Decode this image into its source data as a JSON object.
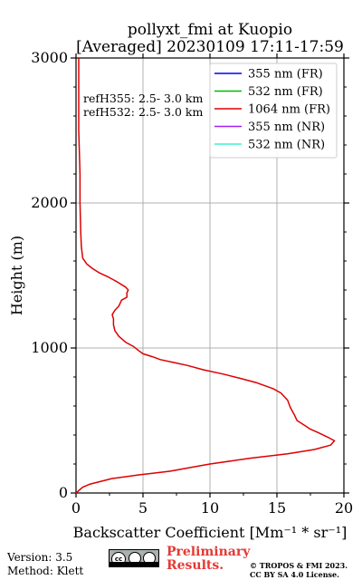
{
  "chart_data": {
    "type": "line",
    "title": "pollyxt_fmi at Kuopio",
    "subtitle": "[Averaged] 20230109 17:11-17:59",
    "xlabel": "Backscatter Coefficient [Mm⁻¹ * sr⁻¹]",
    "ylabel": "Height (m)",
    "xlim": [
      0,
      20
    ],
    "ylim": [
      0,
      3000
    ],
    "xticks": [
      "0",
      "5",
      "10",
      "15",
      "20"
    ],
    "yticks": [
      "0",
      "1000",
      "2000",
      "3000"
    ],
    "grid": true,
    "legend_position": "top-right",
    "ref_notes": [
      "refH355:  2.5- 3.0 km",
      "refH532:  2.5- 3.0 km"
    ],
    "legend": [
      {
        "name": "355 nm (FR)",
        "color": "#0000ee"
      },
      {
        "name": "532 nm (FR)",
        "color": "#00bb00"
      },
      {
        "name": "1064 nm (FR)",
        "color": "#dd0000"
      },
      {
        "name": "355 nm (NR)",
        "color": "#a020f0"
      },
      {
        "name": "532 nm (NR)",
        "color": "#40f0d0"
      }
    ],
    "series": [
      {
        "name": "1064 nm (FR)",
        "color": "#dd0000",
        "points": [
          [
            0.0,
            0
          ],
          [
            0.5,
            40
          ],
          [
            1.0,
            60
          ],
          [
            2.7,
            100
          ],
          [
            4.7,
            125
          ],
          [
            7.0,
            150
          ],
          [
            10.0,
            200
          ],
          [
            13.0,
            240
          ],
          [
            15.8,
            270
          ],
          [
            17.8,
            300
          ],
          [
            19.0,
            330
          ],
          [
            19.3,
            360
          ],
          [
            18.8,
            385
          ],
          [
            18.0,
            420
          ],
          [
            17.5,
            440
          ],
          [
            17.0,
            470
          ],
          [
            16.5,
            500
          ],
          [
            16.3,
            540
          ],
          [
            16.0,
            590
          ],
          [
            15.8,
            640
          ],
          [
            15.3,
            690
          ],
          [
            14.7,
            720
          ],
          [
            13.5,
            760
          ],
          [
            12.3,
            790
          ],
          [
            11.0,
            820
          ],
          [
            9.5,
            850
          ],
          [
            8.3,
            880
          ],
          [
            7.3,
            900
          ],
          [
            6.3,
            920
          ],
          [
            5.7,
            940
          ],
          [
            5.0,
            960
          ],
          [
            4.7,
            980
          ],
          [
            4.3,
            1010
          ],
          [
            3.7,
            1040
          ],
          [
            3.2,
            1080
          ],
          [
            2.9,
            1120
          ],
          [
            2.8,
            1160
          ],
          [
            2.8,
            1200
          ],
          [
            2.7,
            1230
          ],
          [
            2.9,
            1260
          ],
          [
            3.2,
            1290
          ],
          [
            3.4,
            1330
          ],
          [
            3.8,
            1350
          ],
          [
            3.8,
            1380
          ],
          [
            3.9,
            1400
          ],
          [
            3.7,
            1420
          ],
          [
            3.0,
            1460
          ],
          [
            2.4,
            1490
          ],
          [
            1.7,
            1520
          ],
          [
            1.2,
            1550
          ],
          [
            0.8,
            1580
          ],
          [
            0.5,
            1620
          ],
          [
            0.4,
            1700
          ],
          [
            0.35,
            1800
          ],
          [
            0.3,
            2000
          ],
          [
            0.3,
            2200
          ],
          [
            0.2,
            2500
          ],
          [
            0.2,
            2800
          ],
          [
            0.2,
            3000
          ]
        ]
      }
    ]
  },
  "footer": {
    "version": "Version: 3.5",
    "method": "Method: Klett",
    "preliminary": "Preliminary Results.",
    "copyright_line1": "© TROPOS & FMI 2023.",
    "copyright_line2": "CC BY SA 4.0 License.",
    "cc_badge_text": "cc"
  }
}
